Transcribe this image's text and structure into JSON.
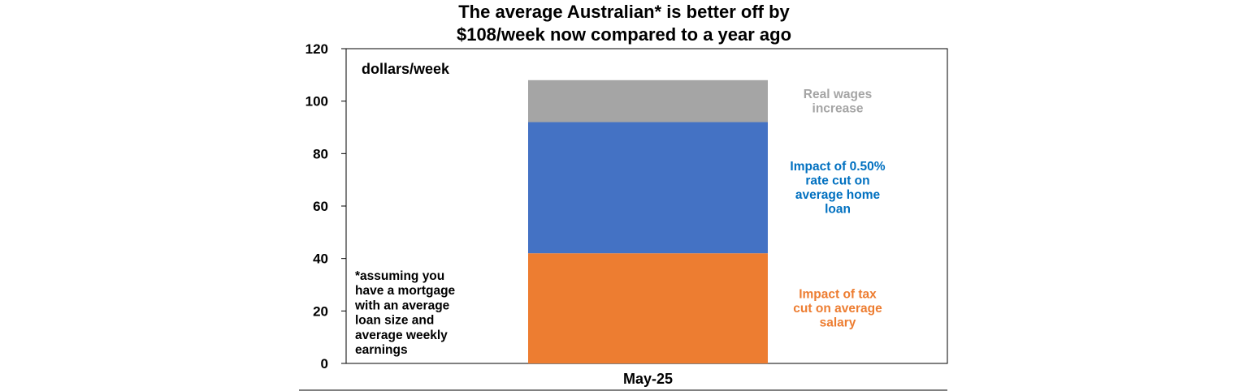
{
  "chart_data": {
    "type": "bar",
    "stacked": true,
    "title_lines": [
      "The average Australian* is better off by",
      "$108/week now compared to a year ago"
    ],
    "unit_label": "dollars/week",
    "categories": [
      "May-25"
    ],
    "ylim": [
      0,
      120
    ],
    "yticks": [
      0,
      20,
      40,
      60,
      80,
      100,
      120
    ],
    "ytick_labels": [
      "0",
      "20",
      "40",
      "60",
      "80",
      "100",
      "120"
    ],
    "grid": false,
    "legend": "none",
    "series": [
      {
        "name_lines": [
          "Impact of tax",
          "cut on average",
          "salary"
        ],
        "values": [
          42
        ],
        "color": "#ED7D31",
        "label_color": "#ED7D31"
      },
      {
        "name_lines": [
          "Impact of 0.50%",
          "rate cut on",
          "average home",
          "loan"
        ],
        "values": [
          50
        ],
        "color": "#4472C4",
        "label_color": "#0070C0"
      },
      {
        "name_lines": [
          "Real wages",
          "increase"
        ],
        "values": [
          16
        ],
        "color": "#A5A5A5",
        "label_color": "#A5A5A5"
      }
    ],
    "footnote_lines": [
      "*assuming you",
      "have a mortgage",
      "with an average",
      "loan size and",
      "average weekly",
      "earnings"
    ]
  }
}
